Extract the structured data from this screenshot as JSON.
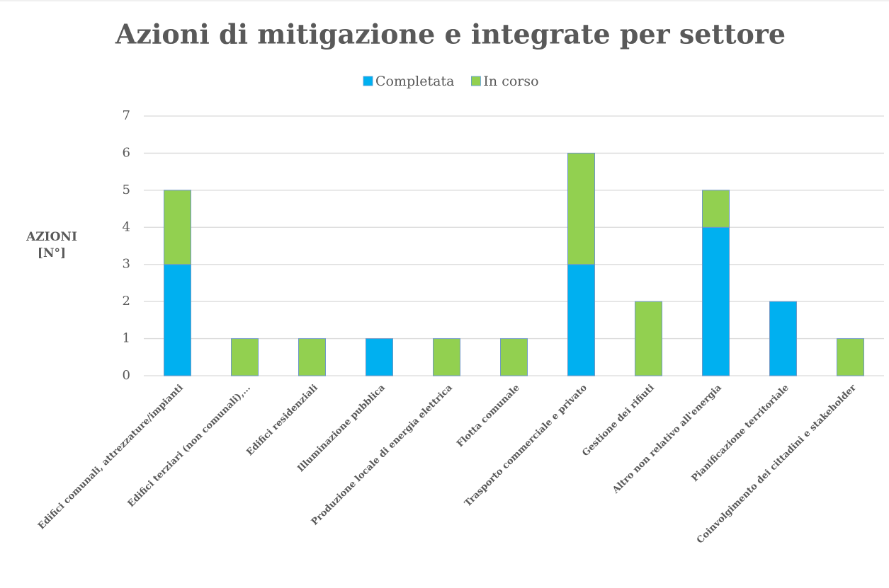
{
  "chart_data": {
    "type": "stacked_bar",
    "title": "Azioni di mitigazione e integrate per settore",
    "y_label": "AZIONI [N°]",
    "categories": [
      "Edifici comunali, attrezzature/impianti",
      "Edifici terziari (non comunali),…",
      "Edifici residenziali",
      "Illuminazione pubblica",
      "Produzione locale di energia elettrica",
      "Flotta comunale",
      "Trasporto commerciale e privato",
      "Gestione dei rifiuti",
      "Altro non relativo all'energia",
      "Pianificazione territoriale",
      "Coinvolgimento dei cittadini e stakeholder"
    ],
    "series": [
      {
        "name": "Completata",
        "color": "#00b0f0",
        "values": [
          3,
          0,
          0,
          1,
          0,
          0,
          3,
          0,
          4,
          2,
          0
        ]
      },
      {
        "name": "In corso",
        "color": "#92d050",
        "values": [
          2,
          1,
          1,
          0,
          1,
          1,
          3,
          2,
          1,
          0,
          1
        ]
      }
    ],
    "ylim": [
      0,
      7
    ],
    "yticks": [
      0,
      1,
      2,
      3,
      4,
      5,
      6,
      7
    ],
    "grid": true,
    "legend": "top"
  }
}
